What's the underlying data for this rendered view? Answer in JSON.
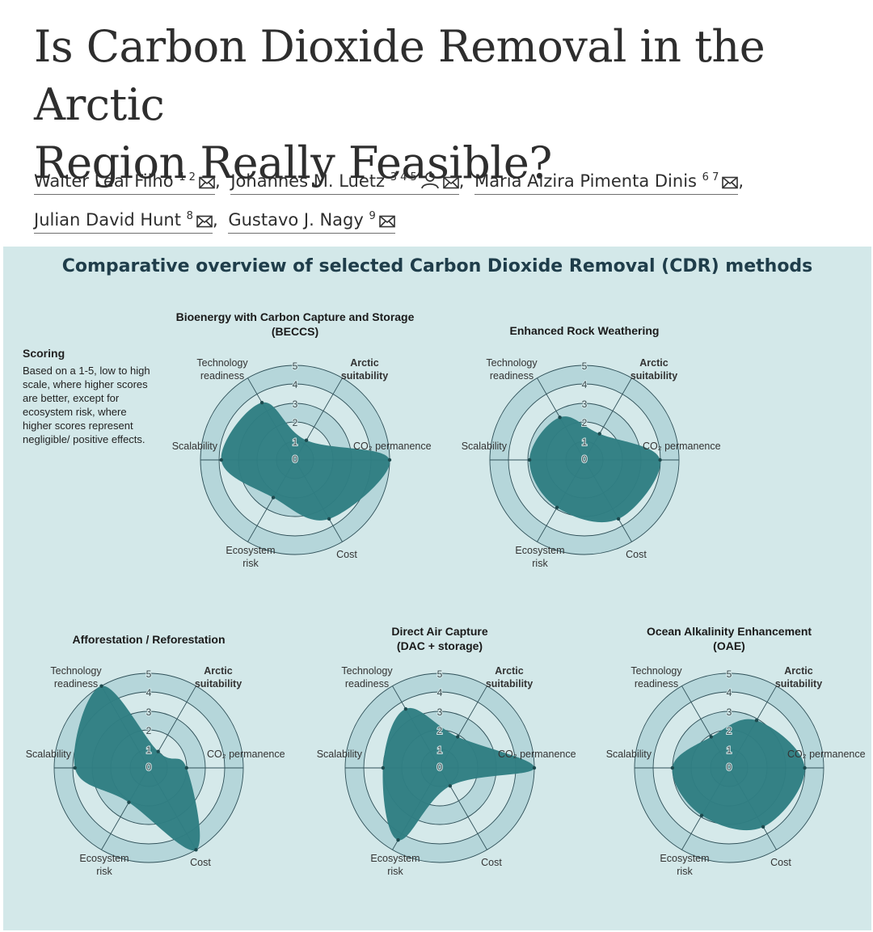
{
  "article": {
    "title_line1": "Is Carbon Dioxide Removal in the Arctic",
    "title_line2": "Region Really Feasible?",
    "authors": [
      {
        "name": "Walter Leal Filho",
        "sup": "1 2"
      },
      {
        "name": "Johannes M. Luetz",
        "sup": "3 4 5"
      },
      {
        "name": "Maria Alzira Pimenta Dinis",
        "sup": "6 7"
      },
      {
        "name": "Julian David Hunt",
        "sup": "8"
      },
      {
        "name": "Gustavo J. Nagy",
        "sup": "9"
      }
    ]
  },
  "figure": {
    "title": "Comparative overview of selected Carbon Dioxide Removal (CDR) methods",
    "scoring_heading": "Scoring",
    "scoring_text": "Based on a 1-5, low to high scale, where higher scores are better, except for ecosystem risk, where higher scores represent negligible/ positive effects."
  },
  "chart_data": [
    {
      "type": "radar",
      "title": [
        "Bioenergy with Carbon Capture and Storage",
        "(BECCS)"
      ],
      "axes": [
        "Technology readiness",
        "Arctic suitability",
        "CO₂ permanence",
        "Cost",
        "Ecosystem risk",
        "Scalability"
      ],
      "values": [
        3.5,
        1.2,
        5,
        3.6,
        2.3,
        3.9
      ],
      "scale": [
        0,
        1,
        2,
        3,
        4,
        5
      ]
    },
    {
      "type": "radar",
      "title": [
        "Enhanced Rock Weathering"
      ],
      "axes": [
        "Technology readiness",
        "Arctic suitability",
        "CO₂ permanence",
        "Cost",
        "Ecosystem risk",
        "Scalability"
      ],
      "values": [
        2.6,
        1.6,
        4,
        3.6,
        2.9,
        2.9
      ],
      "scale": [
        0,
        1,
        2,
        3,
        4,
        5
      ]
    },
    {
      "type": "radar",
      "title": [
        "Afforestation / Reforestation"
      ],
      "axes": [
        "Technology readiness",
        "Arctic suitability",
        "CO₂ permanence",
        "Cost",
        "Ecosystem risk",
        "Scalability"
      ],
      "values": [
        5,
        1,
        2,
        5,
        2.1,
        3.9
      ],
      "scale": [
        0,
        1,
        2,
        3,
        4,
        5
      ]
    },
    {
      "type": "radar",
      "title": [
        "Direct Air Capture",
        "(DAC + storage)"
      ],
      "axes": [
        "Technology readiness",
        "Arctic suitability",
        "CO₂ permanence",
        "Cost",
        "Ecosystem risk",
        "Scalability"
      ],
      "values": [
        3.6,
        1.9,
        5,
        1.1,
        4.4,
        3
      ],
      "scale": [
        0,
        1,
        2,
        3,
        4,
        5
      ]
    },
    {
      "type": "radar",
      "title": [
        "Ocean Alkalinity Enhancement",
        "(OAE)"
      ],
      "axes": [
        "Technology readiness",
        "Arctic suitability",
        "CO₂ permanence",
        "Cost",
        "Ecosystem risk",
        "Scalability"
      ],
      "values": [
        1.9,
        2.9,
        4,
        3.6,
        2.9,
        3
      ]
    }
  ],
  "colors": {
    "panel_bg": "#d3e8e9",
    "ring_outer": "#b5d6da",
    "ring_inner": "#d5e9ea",
    "fill": "#2f7e82",
    "title": "#1f3d4a"
  }
}
